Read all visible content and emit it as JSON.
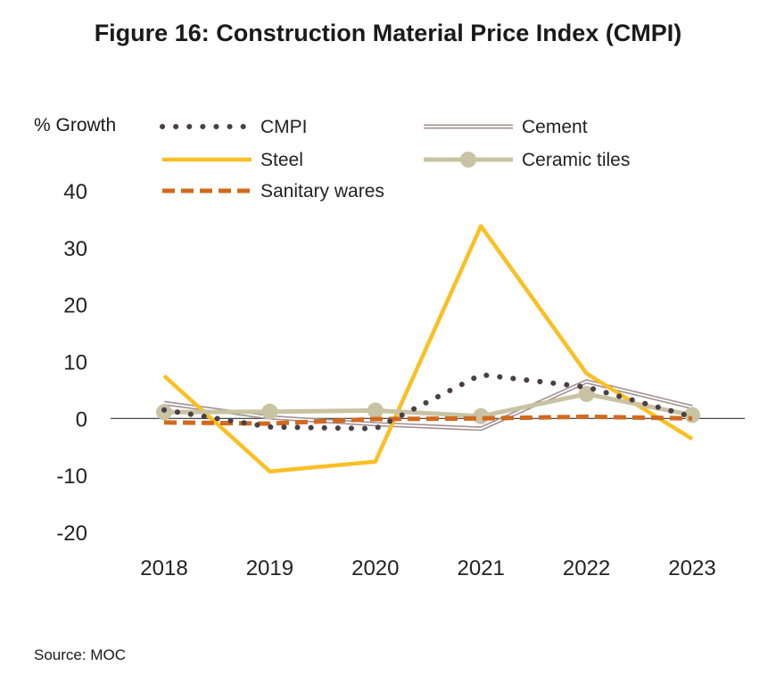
{
  "title": "Figure 16: Construction Material Price Index (CMPI)",
  "source": "Source: MOC",
  "chart_data": {
    "type": "line",
    "title": "Figure 16: Construction Material Price Index (CMPI)",
    "ylabel": "% Growth",
    "xlabel": "",
    "categories": [
      "2018",
      "2019",
      "2020",
      "2021",
      "2022",
      "2023"
    ],
    "ylim": [
      -20,
      40
    ],
    "yticks": [
      -20,
      -10,
      0,
      10,
      20,
      30,
      40
    ],
    "grid": false,
    "legend": "top",
    "series": [
      {
        "name": "CMPI",
        "values": [
          1.5,
          -1.5,
          -1.8,
          7.7,
          5.5,
          0.3
        ],
        "color": "#4a3f45",
        "style": "dotted"
      },
      {
        "name": "Cement",
        "values": [
          2.7,
          0.2,
          -1.0,
          -1.8,
          6.5,
          2.0
        ],
        "color": "#a39193",
        "style": "double"
      },
      {
        "name": "Steel",
        "values": [
          7.5,
          -9.3,
          -7.6,
          33.8,
          7.9,
          -3.6
        ],
        "color": "#fbbf24",
        "style": "solid"
      },
      {
        "name": "Ceramic tiles",
        "values": [
          1.1,
          1.2,
          1.4,
          0.4,
          4.3,
          0.6
        ],
        "color": "#c9c3a3",
        "style": "marker"
      },
      {
        "name": "Sanitary wares",
        "values": [
          -0.7,
          -0.9,
          -0.1,
          0.0,
          0.3,
          0.0
        ],
        "color": "#d2691e",
        "style": "dashed"
      }
    ]
  }
}
